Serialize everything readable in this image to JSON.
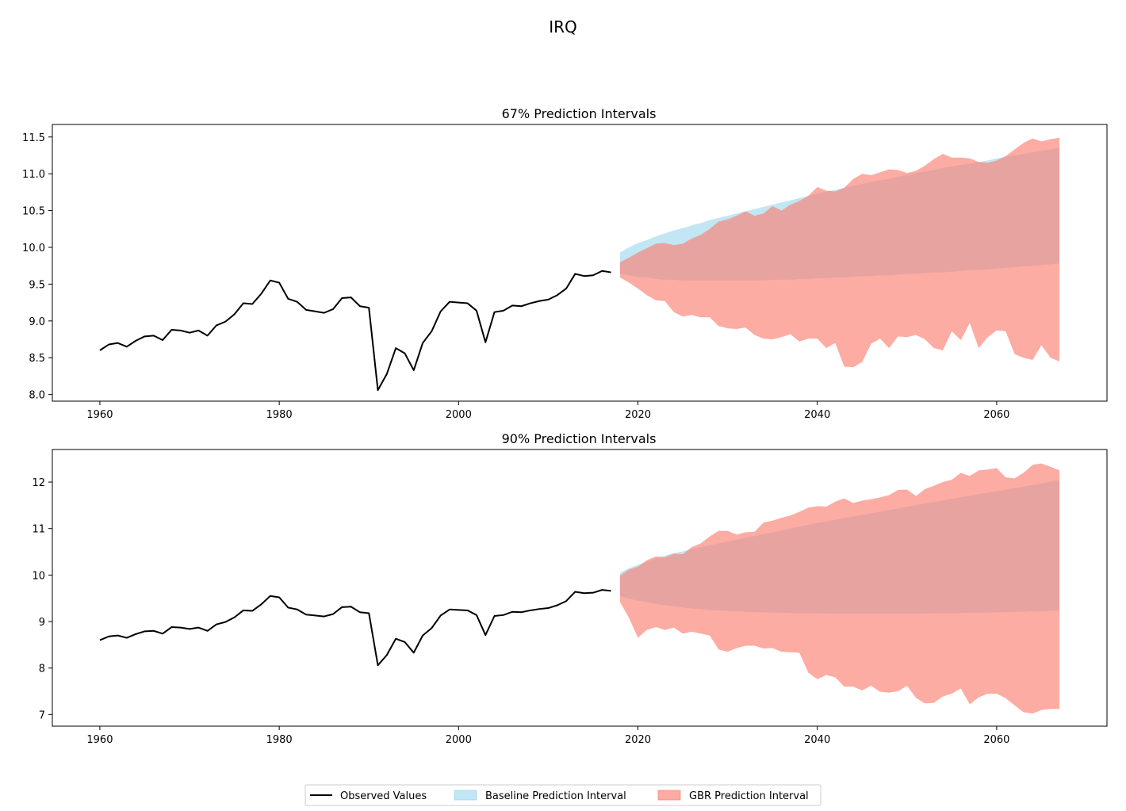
{
  "figure_title": "IRQ",
  "colors": {
    "observed": "#000000",
    "baseline": "#87CEEB",
    "gbr": "#FA8072"
  },
  "legend": {
    "placement": "bottom-center",
    "items": [
      {
        "label": "Observed Values",
        "kind": "line",
        "color": "#000000"
      },
      {
        "label": "Baseline Prediction Interval",
        "kind": "patch",
        "color": "#87CEEB"
      },
      {
        "label": "GBR Prediction Interval",
        "kind": "patch",
        "color": "#FA8072"
      }
    ]
  },
  "chart_data": [
    {
      "type": "area",
      "title": "67% Prediction Intervals",
      "xlim": [
        1954.7,
        2072.3
      ],
      "ylim": [
        7.91,
        11.67
      ],
      "xticks": [
        1960,
        1980,
        2000,
        2020,
        2040,
        2060
      ],
      "yticks": [
        8.0,
        8.5,
        9.0,
        9.5,
        10.0,
        10.5,
        11.0,
        11.5
      ],
      "ytick_decimals": 1,
      "grid": false,
      "observed": {
        "x_start": 1960,
        "values": [
          8.6,
          8.68,
          8.7,
          8.65,
          8.73,
          8.79,
          8.8,
          8.74,
          8.88,
          8.87,
          8.84,
          8.87,
          8.8,
          8.94,
          8.99,
          9.09,
          9.24,
          9.23,
          9.37,
          9.55,
          9.52,
          9.3,
          9.26,
          9.15,
          9.13,
          9.11,
          9.16,
          9.31,
          9.32,
          9.2,
          9.18,
          8.06,
          8.28,
          8.63,
          8.56,
          8.33,
          8.7,
          8.86,
          9.13,
          9.26,
          9.25,
          9.24,
          9.14,
          8.71,
          9.12,
          9.14,
          9.21,
          9.2,
          9.24,
          9.27,
          9.29,
          9.35,
          9.44,
          9.64,
          9.61,
          9.62,
          9.68,
          9.66
        ]
      },
      "baseline": {
        "x_start": 2018,
        "upper": [
          9.93,
          10.0,
          10.06,
          10.1,
          10.15,
          10.19,
          10.23,
          10.26,
          10.3,
          10.33,
          10.37,
          10.4,
          10.43,
          10.46,
          10.49,
          10.52,
          10.55,
          10.58,
          10.61,
          10.64,
          10.67,
          10.7,
          10.73,
          10.76,
          10.78,
          10.81,
          10.84,
          10.86,
          10.89,
          10.91,
          10.93,
          10.96,
          10.98,
          11.01,
          11.03,
          11.05,
          11.08,
          11.1,
          11.12,
          11.14,
          11.16,
          11.18,
          11.21,
          11.23,
          11.25,
          11.27,
          11.29,
          11.31,
          11.33,
          11.35
        ],
        "lower": [
          9.64,
          9.62,
          9.6,
          9.59,
          9.57,
          9.56,
          9.56,
          9.55,
          9.55,
          9.55,
          9.55,
          9.55,
          9.55,
          9.55,
          9.55,
          9.55,
          9.55,
          9.56,
          9.56,
          9.56,
          9.57,
          9.57,
          9.58,
          9.58,
          9.59,
          9.59,
          9.6,
          9.61,
          9.61,
          9.62,
          9.62,
          9.63,
          9.64,
          9.64,
          9.65,
          9.66,
          9.66,
          9.67,
          9.68,
          9.69,
          9.69,
          9.7,
          9.71,
          9.72,
          9.73,
          9.74,
          9.75,
          9.76,
          9.77,
          9.78
        ]
      },
      "gbr": {
        "x_start": 2018,
        "upper": [
          9.8,
          9.86,
          9.93,
          9.99,
          10.05,
          10.06,
          10.03,
          10.05,
          10.12,
          10.17,
          10.25,
          10.35,
          10.38,
          10.43,
          10.49,
          10.43,
          10.46,
          10.56,
          10.5,
          10.58,
          10.63,
          10.7,
          10.82,
          10.77,
          10.76,
          10.81,
          10.93,
          11.0,
          10.98,
          11.02,
          11.06,
          11.05,
          11.01,
          11.04,
          11.11,
          11.2,
          11.27,
          11.22,
          11.22,
          11.21,
          11.16,
          11.15,
          11.18,
          11.24,
          11.33,
          11.42,
          11.48,
          11.44,
          11.47,
          11.49
        ],
        "lower": [
          9.59,
          9.52,
          9.44,
          9.35,
          9.28,
          9.27,
          9.12,
          9.06,
          9.08,
          9.05,
          9.05,
          8.93,
          8.9,
          8.89,
          8.91,
          8.81,
          8.76,
          8.75,
          8.78,
          8.82,
          8.72,
          8.76,
          8.76,
          8.63,
          8.7,
          8.38,
          8.37,
          8.44,
          8.69,
          8.76,
          8.63,
          8.79,
          8.78,
          8.81,
          8.75,
          8.63,
          8.6,
          8.86,
          8.74,
          8.97,
          8.63,
          8.78,
          8.87,
          8.86,
          8.55,
          8.5,
          8.47,
          8.67,
          8.5,
          8.45
        ]
      }
    },
    {
      "type": "area",
      "title": "90% Prediction Intervals",
      "xlim": [
        1954.7,
        2072.3
      ],
      "ylim": [
        6.75,
        12.7
      ],
      "xticks": [
        1960,
        1980,
        2000,
        2020,
        2040,
        2060
      ],
      "yticks": [
        7,
        8,
        9,
        10,
        11,
        12
      ],
      "ytick_decimals": 0,
      "grid": false,
      "observed": {
        "x_start": 1960,
        "values": [
          8.6,
          8.68,
          8.7,
          8.65,
          8.73,
          8.79,
          8.8,
          8.74,
          8.88,
          8.87,
          8.84,
          8.87,
          8.8,
          8.94,
          8.99,
          9.09,
          9.24,
          9.23,
          9.37,
          9.55,
          9.52,
          9.3,
          9.26,
          9.15,
          9.13,
          9.11,
          9.16,
          9.31,
          9.32,
          9.2,
          9.18,
          8.06,
          8.28,
          8.63,
          8.56,
          8.33,
          8.7,
          8.86,
          9.13,
          9.26,
          9.25,
          9.24,
          9.14,
          8.71,
          9.12,
          9.14,
          9.21,
          9.2,
          9.24,
          9.27,
          9.29,
          9.35,
          9.44,
          9.64,
          9.61,
          9.62,
          9.68,
          9.66
        ]
      },
      "baseline": {
        "x_start": 2018,
        "upper": [
          10.05,
          10.15,
          10.22,
          10.29,
          10.36,
          10.42,
          10.47,
          10.51,
          10.56,
          10.6,
          10.64,
          10.68,
          10.72,
          10.76,
          10.8,
          10.84,
          10.88,
          10.92,
          10.96,
          11.0,
          11.04,
          11.08,
          11.12,
          11.15,
          11.19,
          11.22,
          11.26,
          11.29,
          11.33,
          11.36,
          11.4,
          11.43,
          11.47,
          11.5,
          11.54,
          11.57,
          11.6,
          11.64,
          11.67,
          11.7,
          11.74,
          11.77,
          11.8,
          11.84,
          11.87,
          11.9,
          11.94,
          11.97,
          12.01,
          12.04
        ],
        "lower": [
          9.55,
          9.49,
          9.45,
          9.42,
          9.38,
          9.35,
          9.33,
          9.3,
          9.28,
          9.27,
          9.25,
          9.24,
          9.23,
          9.22,
          9.21,
          9.2,
          9.2,
          9.19,
          9.19,
          9.18,
          9.18,
          9.18,
          9.18,
          9.17,
          9.17,
          9.17,
          9.17,
          9.17,
          9.17,
          9.17,
          9.17,
          9.17,
          9.17,
          9.17,
          9.17,
          9.18,
          9.18,
          9.18,
          9.18,
          9.19,
          9.19,
          9.19,
          9.2,
          9.2,
          9.21,
          9.21,
          9.22,
          9.22,
          9.23,
          9.23
        ]
      },
      "gbr": {
        "x_start": 2018,
        "upper": [
          9.99,
          10.12,
          10.18,
          10.32,
          10.4,
          10.38,
          10.46,
          10.45,
          10.6,
          10.68,
          10.83,
          10.95,
          10.95,
          10.87,
          10.92,
          10.93,
          11.13,
          11.17,
          11.23,
          11.28,
          11.36,
          11.45,
          11.48,
          11.47,
          11.58,
          11.65,
          11.55,
          11.6,
          11.63,
          11.67,
          11.72,
          11.83,
          11.84,
          11.7,
          11.85,
          11.92,
          12.0,
          12.05,
          12.2,
          12.13,
          12.25,
          12.27,
          12.3,
          12.1,
          12.08,
          12.2,
          12.37,
          12.4,
          12.33,
          12.25
        ],
        "lower": [
          9.42,
          9.08,
          8.65,
          8.82,
          8.88,
          8.82,
          8.87,
          8.74,
          8.78,
          8.74,
          8.7,
          8.4,
          8.35,
          8.43,
          8.48,
          8.48,
          8.42,
          8.43,
          8.35,
          8.34,
          8.33,
          7.9,
          7.76,
          7.85,
          7.8,
          7.6,
          7.6,
          7.52,
          7.62,
          7.49,
          7.47,
          7.5,
          7.62,
          7.36,
          7.24,
          7.25,
          7.39,
          7.45,
          7.56,
          7.22,
          7.37,
          7.45,
          7.45,
          7.35,
          7.2,
          7.05,
          7.02,
          7.1,
          7.12,
          7.12
        ]
      }
    }
  ]
}
